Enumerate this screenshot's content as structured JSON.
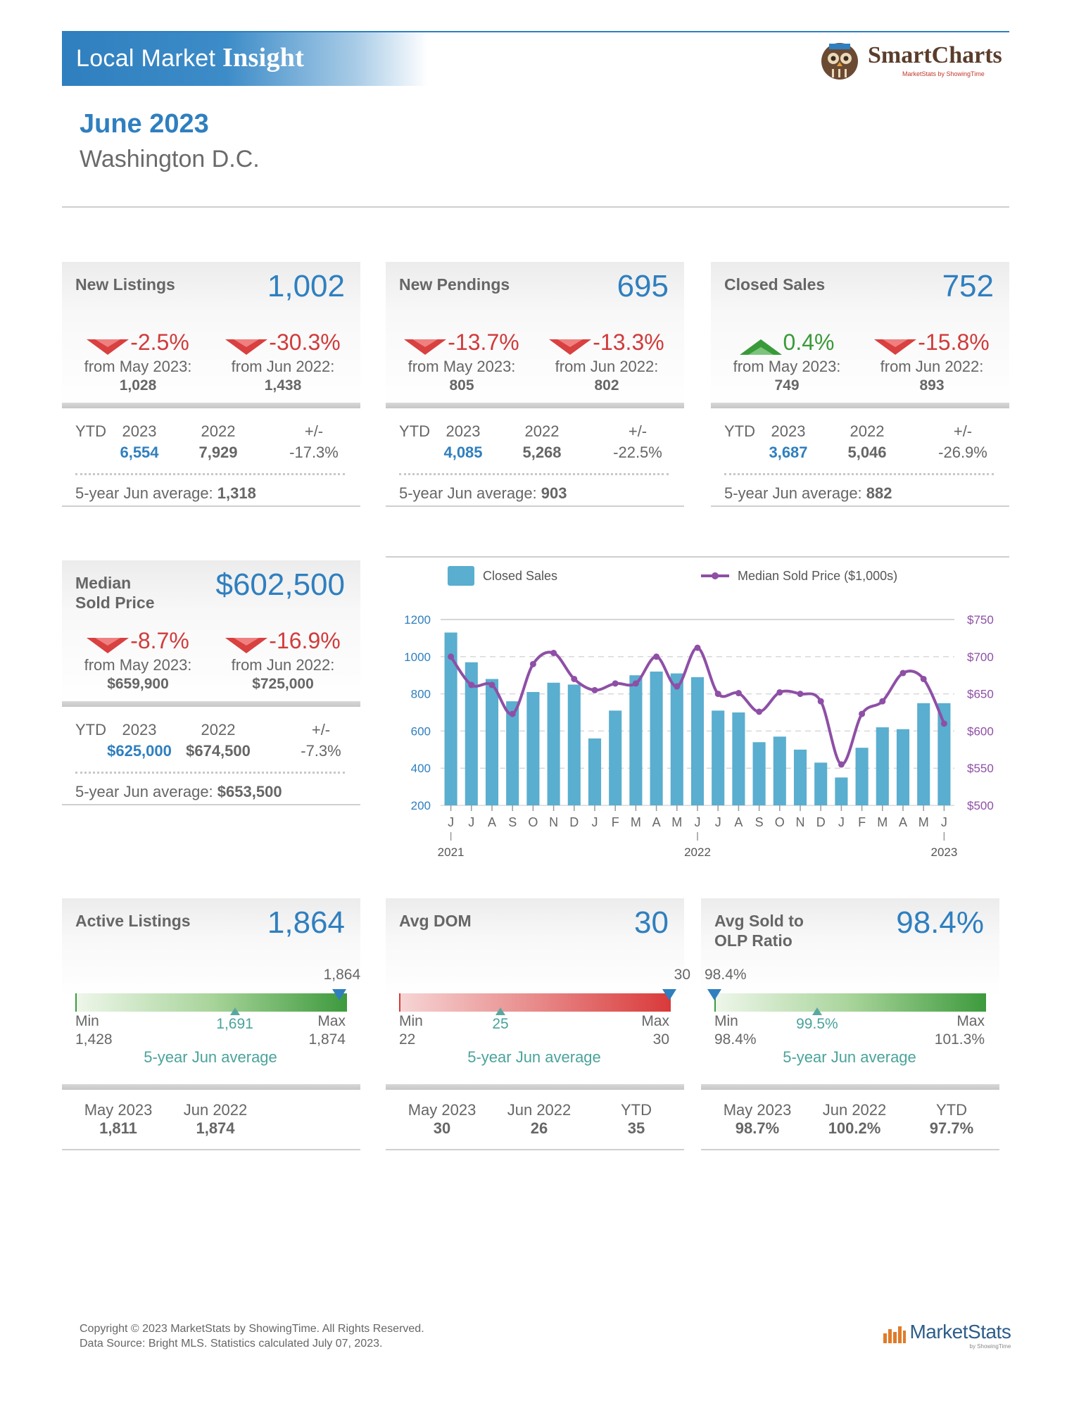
{
  "header": {
    "title_prefix": "Local Market",
    "title_bold": "Insight",
    "brand": "SmartCharts",
    "brand_tag": "MarketStats by ShowingTime"
  },
  "report": {
    "month": "June 2023",
    "area": "Washington D.C."
  },
  "cards": [
    {
      "title": "New Listings",
      "value": "1,002",
      "chg1": {
        "pct": "-2.5%",
        "dir": "down",
        "label": "from May 2023:",
        "num": "1,028"
      },
      "chg2": {
        "pct": "-30.3%",
        "dir": "down",
        "label": "from Jun 2022:",
        "num": "1,438"
      },
      "ytd": {
        "label": "YTD",
        "y1": "2023",
        "y2": "2022",
        "pm": "+/-",
        "v1": "6,554",
        "v2": "7,929",
        "vpm": "-17.3%"
      },
      "avg_label": "5-year Jun average:",
      "avg": "1,318"
    },
    {
      "title": "New Pendings",
      "value": "695",
      "chg1": {
        "pct": "-13.7%",
        "dir": "down",
        "label": "from May 2023:",
        "num": "805"
      },
      "chg2": {
        "pct": "-13.3%",
        "dir": "down",
        "label": "from Jun 2022:",
        "num": "802"
      },
      "ytd": {
        "label": "YTD",
        "y1": "2023",
        "y2": "2022",
        "pm": "+/-",
        "v1": "4,085",
        "v2": "5,268",
        "vpm": "-22.5%"
      },
      "avg_label": "5-year Jun average:",
      "avg": "903"
    },
    {
      "title": "Closed Sales",
      "value": "752",
      "chg1": {
        "pct": "0.4%",
        "dir": "up",
        "label": "from May 2023:",
        "num": "749"
      },
      "chg2": {
        "pct": "-15.8%",
        "dir": "down",
        "label": "from Jun 2022:",
        "num": "893"
      },
      "ytd": {
        "label": "YTD",
        "y1": "2023",
        "y2": "2022",
        "pm": "+/-",
        "v1": "3,687",
        "v2": "5,046",
        "vpm": "-26.9%"
      },
      "avg_label": "5-year Jun average:",
      "avg": "882"
    },
    {
      "title": "Median\nSold Price",
      "value": "$602,500",
      "chg1": {
        "pct": "-8.7%",
        "dir": "down",
        "label": "from May 2023:",
        "num": "$659,900"
      },
      "chg2": {
        "pct": "-16.9%",
        "dir": "down",
        "label": "from Jun 2022:",
        "num": "$725,000"
      },
      "ytd": {
        "label": "YTD",
        "y1": "2023",
        "y2": "2022",
        "pm": "+/-",
        "v1": "$625,000",
        "v2": "$674,500",
        "vpm": "-7.3%"
      },
      "avg_label": "5-year Jun average:",
      "avg": "$653,500"
    }
  ],
  "gauges": [
    {
      "title": "Active Listings",
      "value": "1,864",
      "current": "1,864",
      "fraction": 0.977,
      "min_label": "Min",
      "min": "1,428",
      "max_label": "Max",
      "max": "1,874",
      "avg": "1,691",
      "avg_fraction": 0.59,
      "avg_label": "5-year Jun average",
      "color": "#3d9a3d",
      "foot": [
        {
          "label": "May 2023",
          "value": "1,811"
        },
        {
          "label": "Jun 2022",
          "value": "1,874"
        }
      ]
    },
    {
      "title": "Avg DOM",
      "value": "30",
      "current": "30",
      "fraction": 1.0,
      "min_label": "Min",
      "min": "22",
      "max_label": "Max",
      "max": "30",
      "avg": "25",
      "avg_fraction": 0.375,
      "avg_label": "5-year Jun average",
      "color": "#d93a3a",
      "foot": [
        {
          "label": "May 2023",
          "value": "30"
        },
        {
          "label": "Jun 2022",
          "value": "26"
        },
        {
          "label": "YTD",
          "value": "35"
        }
      ]
    },
    {
      "title": "Avg Sold to\nOLP Ratio",
      "value": "98.4%",
      "current": "98.4%",
      "fraction": 0.0,
      "min_label": "Min",
      "min": "98.4%",
      "max_label": "Max",
      "max": "101.3%",
      "avg": "99.5%",
      "avg_fraction": 0.38,
      "avg_label": "5-year Jun average",
      "color": "#3d9a3d",
      "foot": [
        {
          "label": "May 2023",
          "value": "98.7%"
        },
        {
          "label": "Jun 2022",
          "value": "100.2%"
        },
        {
          "label": "YTD",
          "value": "97.7%"
        }
      ]
    }
  ],
  "chart_data": {
    "type": "bar",
    "categories": [
      "J",
      "J",
      "A",
      "S",
      "O",
      "N",
      "D",
      "J",
      "F",
      "M",
      "A",
      "M",
      "J",
      "J",
      "A",
      "S",
      "O",
      "N",
      "D",
      "J",
      "F",
      "M",
      "A",
      "M",
      "J"
    ],
    "year_labels": [
      {
        "index": 0,
        "label": "2021"
      },
      {
        "index": 12,
        "label": "2022"
      },
      {
        "index": 24,
        "label": "2023"
      }
    ],
    "series": [
      {
        "name": "Closed Sales",
        "type": "bar",
        "axis": "left",
        "color": "#5aaecf",
        "values": [
          1130,
          970,
          880,
          760,
          810,
          860,
          850,
          560,
          710,
          900,
          920,
          910,
          890,
          710,
          700,
          540,
          570,
          500,
          430,
          350,
          510,
          620,
          610,
          750,
          750
        ]
      },
      {
        "name": "Median Sold Price ($1,000s)",
        "type": "line",
        "axis": "right",
        "color": "#8e4fa6",
        "values": [
          700,
          662,
          662,
          623,
          690,
          705,
          670,
          655,
          664,
          664,
          700,
          660,
          712,
          650,
          651,
          626,
          652,
          650,
          640,
          555,
          623,
          640,
          678,
          670,
          610
        ]
      }
    ],
    "y_left": {
      "ticks": [
        "1200",
        "1000",
        "800",
        "600",
        "400",
        "200"
      ],
      "min": 200,
      "max": 1200
    },
    "y_right": {
      "ticks": [
        "$750",
        "$700",
        "$650",
        "$600",
        "$550",
        "$500"
      ],
      "min": 500,
      "max": 750
    },
    "legend": "top",
    "grid": true
  },
  "footer": {
    "line1": "Copyright © 2023 MarketStats by ShowingTime. All Rights Reserved.",
    "line2": "Data Source: Bright MLS. Statistics calculated July 07, 2023.",
    "brand": "MarketStats",
    "brand_tag": "by ShowingTime"
  }
}
